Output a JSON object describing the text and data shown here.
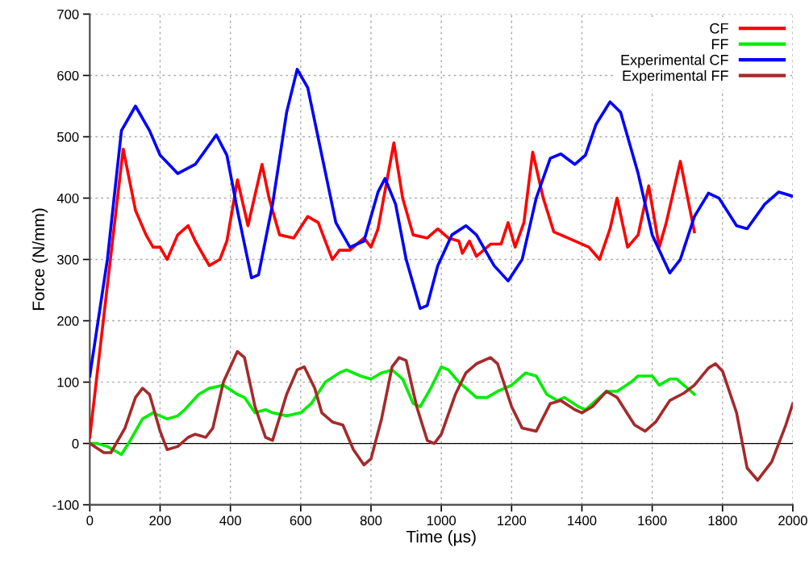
{
  "chart_data": {
    "type": "line",
    "xlabel": "Time (µs)",
    "ylabel": "Force (N/mm)",
    "xlim": [
      0,
      2000
    ],
    "ylim": [
      -100,
      700
    ],
    "xticks": [
      0,
      200,
      400,
      600,
      800,
      1000,
      1200,
      1400,
      1600,
      1800,
      2000
    ],
    "yticks": [
      -100,
      0,
      100,
      200,
      300,
      400,
      500,
      600,
      700
    ],
    "grid": true,
    "legend": "top right",
    "marker": "none",
    "line_style": "solid",
    "ref_lines": [
      {
        "axis": "y",
        "value": 0,
        "color": "#000000"
      }
    ],
    "series": [
      {
        "name": "CF",
        "color": "#ff0000",
        "x": [
          0,
          95,
          130,
          160,
          180,
          200,
          220,
          250,
          280,
          300,
          340,
          370,
          390,
          420,
          450,
          490,
          510,
          540,
          580,
          620,
          650,
          690,
          710,
          740,
          780,
          800,
          820,
          865,
          890,
          920,
          960,
          990,
          1020,
          1050,
          1060,
          1080,
          1100,
          1140,
          1170,
          1190,
          1210,
          1235,
          1260,
          1290,
          1320,
          1360,
          1420,
          1450,
          1480,
          1500,
          1530,
          1560,
          1590,
          1620,
          1640,
          1680,
          1720
        ],
        "values": [
          10,
          480,
          380,
          340,
          320,
          320,
          300,
          340,
          355,
          330,
          290,
          300,
          330,
          430,
          355,
          455,
          400,
          340,
          335,
          370,
          360,
          300,
          315,
          315,
          335,
          320,
          350,
          490,
          400,
          340,
          335,
          350,
          335,
          330,
          310,
          330,
          305,
          325,
          325,
          360,
          320,
          360,
          475,
          400,
          345,
          335,
          320,
          300,
          350,
          400,
          320,
          340,
          420,
          320,
          360,
          460,
          345
        ]
      },
      {
        "name": "FF",
        "color": "#00ee00",
        "x": [
          0,
          20,
          50,
          90,
          110,
          150,
          180,
          220,
          250,
          270,
          310,
          340,
          380,
          420,
          440,
          470,
          500,
          520,
          560,
          600,
          630,
          670,
          710,
          730,
          770,
          800,
          830,
          860,
          890,
          920,
          940,
          970,
          1000,
          1020,
          1050,
          1080,
          1100,
          1130,
          1160,
          1200,
          1240,
          1270,
          1300,
          1330,
          1350,
          1390,
          1410,
          1440,
          1470,
          1500,
          1540,
          1560,
          1600,
          1620,
          1650,
          1670,
          1700,
          1720
        ],
        "values": [
          0,
          0,
          -5,
          -18,
          0,
          40,
          50,
          40,
          45,
          55,
          80,
          90,
          95,
          80,
          75,
          50,
          55,
          50,
          45,
          50,
          65,
          100,
          115,
          120,
          110,
          105,
          115,
          120,
          105,
          65,
          60,
          90,
          125,
          120,
          100,
          85,
          75,
          75,
          85,
          95,
          115,
          110,
          80,
          70,
          75,
          60,
          55,
          70,
          85,
          85,
          100,
          110,
          110,
          95,
          105,
          105,
          90,
          80
        ]
      },
      {
        "name": "Experimental CF",
        "color": "#0000ff",
        "x": [
          0,
          50,
          90,
          130,
          170,
          200,
          250,
          300,
          360,
          390,
          420,
          460,
          480,
          520,
          560,
          590,
          620,
          660,
          700,
          740,
          780,
          820,
          840,
          870,
          900,
          940,
          960,
          990,
          1030,
          1070,
          1100,
          1150,
          1190,
          1230,
          1270,
          1310,
          1340,
          1380,
          1410,
          1440,
          1480,
          1510,
          1560,
          1600,
          1650,
          1680,
          1720,
          1760,
          1790,
          1840,
          1870,
          1920,
          1960,
          2000
        ],
        "values": [
          110,
          300,
          510,
          550,
          510,
          470,
          440,
          455,
          503,
          470,
          380,
          270,
          275,
          390,
          540,
          610,
          580,
          470,
          360,
          320,
          330,
          410,
          432,
          390,
          300,
          220,
          225,
          290,
          340,
          355,
          340,
          290,
          265,
          300,
          400,
          465,
          472,
          455,
          470,
          520,
          557,
          540,
          440,
          340,
          278,
          300,
          370,
          408,
          400,
          355,
          350,
          390,
          410,
          403
        ]
      },
      {
        "name": "Experimental FF",
        "color": "#a52a2a",
        "x": [
          0,
          40,
          60,
          100,
          130,
          150,
          170,
          200,
          220,
          250,
          280,
          300,
          330,
          350,
          380,
          420,
          440,
          470,
          500,
          520,
          560,
          590,
          610,
          640,
          660,
          690,
          720,
          750,
          780,
          800,
          830,
          860,
          880,
          900,
          930,
          960,
          980,
          1000,
          1040,
          1070,
          1100,
          1140,
          1160,
          1200,
          1230,
          1270,
          1310,
          1340,
          1380,
          1400,
          1430,
          1470,
          1500,
          1550,
          1580,
          1610,
          1650,
          1690,
          1720,
          1760,
          1780,
          1800,
          1840,
          1870,
          1900,
          1940,
          1980,
          2000
        ],
        "values": [
          0,
          -15,
          -15,
          25,
          75,
          90,
          80,
          20,
          -10,
          -5,
          10,
          15,
          10,
          25,
          100,
          150,
          140,
          60,
          10,
          5,
          80,
          120,
          125,
          90,
          50,
          35,
          30,
          -10,
          -35,
          -25,
          40,
          125,
          140,
          135,
          60,
          5,
          0,
          15,
          80,
          115,
          130,
          140,
          130,
          60,
          25,
          20,
          65,
          70,
          55,
          50,
          60,
          85,
          75,
          30,
          20,
          35,
          70,
          82,
          95,
          123,
          130,
          118,
          50,
          -40,
          -60,
          -30,
          30,
          65
        ]
      }
    ]
  }
}
